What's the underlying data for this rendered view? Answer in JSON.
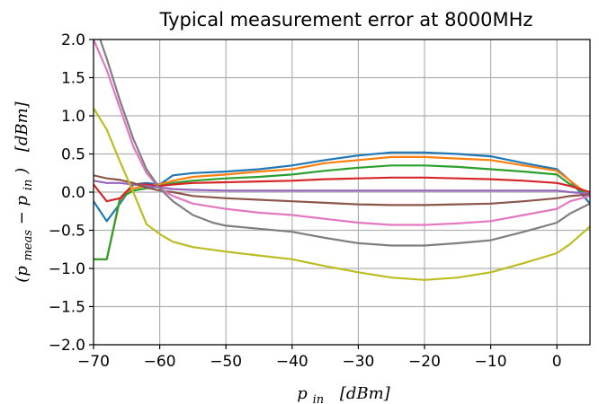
{
  "chart_data": {
    "type": "line",
    "title": "Typical measurement error at 8000MHz",
    "xlabel": {
      "var": "p",
      "sub": "in",
      "unit": "[dBm]"
    },
    "ylabel": {
      "var": "(p",
      "sub1": "meas",
      "mid": " − p",
      "sub2": "in",
      "close": ")",
      "unit": "[dBm]"
    },
    "xlim": [
      -70,
      5
    ],
    "ylim": [
      -2.0,
      2.0
    ],
    "xticks": [
      -70,
      -60,
      -50,
      -40,
      -30,
      -20,
      -10,
      0
    ],
    "xtick_labels": [
      "−70",
      "−60",
      "−50",
      "−40",
      "−30",
      "−20",
      "−10",
      "0"
    ],
    "yticks": [
      -2.0,
      -1.5,
      -1.0,
      -0.5,
      0.0,
      0.5,
      1.0,
      1.5,
      2.0
    ],
    "ytick_labels": [
      "−2.0",
      "−1.5",
      "−1.0",
      "−0.5",
      "0.0",
      "0.5",
      "1.0",
      "1.5",
      "2.0"
    ],
    "grid": true,
    "series": [
      {
        "color": "#1f77b4",
        "points": [
          [
            -70,
            -0.12
          ],
          [
            -68,
            -0.38
          ],
          [
            -66,
            -0.15
          ],
          [
            -64,
            0.1
          ],
          [
            -62,
            0.12
          ],
          [
            -60,
            0.1
          ],
          [
            -58,
            0.22
          ],
          [
            -55,
            0.25
          ],
          [
            -50,
            0.27
          ],
          [
            -45,
            0.3
          ],
          [
            -40,
            0.35
          ],
          [
            -35,
            0.42
          ],
          [
            -30,
            0.48
          ],
          [
            -25,
            0.52
          ],
          [
            -20,
            0.52
          ],
          [
            -15,
            0.5
          ],
          [
            -10,
            0.47
          ],
          [
            -5,
            0.38
          ],
          [
            0,
            0.3
          ],
          [
            2,
            0.15
          ],
          [
            5,
            -0.15
          ]
        ]
      },
      {
        "color": "#ff7f0e",
        "points": [
          [
            -70,
            -0.88
          ],
          [
            -68,
            -0.88
          ],
          [
            -66,
            -0.1
          ],
          [
            -64,
            0.05
          ],
          [
            -62,
            0.08
          ],
          [
            -60,
            0.1
          ],
          [
            -58,
            0.15
          ],
          [
            -55,
            0.2
          ],
          [
            -50,
            0.23
          ],
          [
            -45,
            0.27
          ],
          [
            -40,
            0.3
          ],
          [
            -35,
            0.38
          ],
          [
            -30,
            0.42
          ],
          [
            -25,
            0.46
          ],
          [
            -20,
            0.46
          ],
          [
            -15,
            0.44
          ],
          [
            -10,
            0.42
          ],
          [
            -5,
            0.35
          ],
          [
            0,
            0.28
          ],
          [
            2,
            0.15
          ],
          [
            5,
            -0.05
          ]
        ]
      },
      {
        "color": "#2ca02c",
        "points": [
          [
            -70,
            -0.88
          ],
          [
            -68,
            -0.88
          ],
          [
            -66,
            -0.08
          ],
          [
            -64,
            0.02
          ],
          [
            -62,
            0.05
          ],
          [
            -60,
            0.08
          ],
          [
            -58,
            0.12
          ],
          [
            -55,
            0.15
          ],
          [
            -50,
            0.18
          ],
          [
            -45,
            0.2
          ],
          [
            -40,
            0.23
          ],
          [
            -35,
            0.28
          ],
          [
            -30,
            0.32
          ],
          [
            -25,
            0.35
          ],
          [
            -20,
            0.35
          ],
          [
            -15,
            0.33
          ],
          [
            -10,
            0.3
          ],
          [
            -5,
            0.27
          ],
          [
            0,
            0.23
          ],
          [
            2,
            0.1
          ],
          [
            5,
            -0.05
          ]
        ]
      },
      {
        "color": "#d62728",
        "points": [
          [
            -70,
            0.1
          ],
          [
            -68,
            -0.12
          ],
          [
            -66,
            -0.08
          ],
          [
            -64,
            0.1
          ],
          [
            -62,
            0.1
          ],
          [
            -60,
            0.08
          ],
          [
            -58,
            0.1
          ],
          [
            -55,
            0.12
          ],
          [
            -50,
            0.13
          ],
          [
            -45,
            0.14
          ],
          [
            -40,
            0.15
          ],
          [
            -35,
            0.17
          ],
          [
            -30,
            0.18
          ],
          [
            -25,
            0.19
          ],
          [
            -20,
            0.19
          ],
          [
            -15,
            0.18
          ],
          [
            -10,
            0.17
          ],
          [
            -5,
            0.15
          ],
          [
            0,
            0.12
          ],
          [
            2,
            0.08
          ],
          [
            5,
            0.0
          ]
        ]
      },
      {
        "color": "#9467bd",
        "points": [
          [
            -70,
            0.15
          ],
          [
            -68,
            0.12
          ],
          [
            -66,
            0.12
          ],
          [
            -64,
            0.1
          ],
          [
            -62,
            0.08
          ],
          [
            -60,
            0.06
          ],
          [
            -58,
            0.04
          ],
          [
            -55,
            0.03
          ],
          [
            -50,
            0.02
          ],
          [
            -45,
            0.02
          ],
          [
            -40,
            0.02
          ],
          [
            -35,
            0.02
          ],
          [
            -30,
            0.02
          ],
          [
            -25,
            0.02
          ],
          [
            -20,
            0.02
          ],
          [
            -15,
            0.02
          ],
          [
            -10,
            0.02
          ],
          [
            -5,
            0.02
          ],
          [
            0,
            0.02
          ],
          [
            2,
            0.0
          ],
          [
            5,
            -0.02
          ]
        ]
      },
      {
        "color": "#8c564b",
        "points": [
          [
            -70,
            0.22
          ],
          [
            -68,
            0.18
          ],
          [
            -66,
            0.16
          ],
          [
            -64,
            0.12
          ],
          [
            -62,
            0.06
          ],
          [
            -60,
            0.02
          ],
          [
            -58,
            0.0
          ],
          [
            -55,
            -0.05
          ],
          [
            -50,
            -0.08
          ],
          [
            -45,
            -0.1
          ],
          [
            -40,
            -0.12
          ],
          [
            -35,
            -0.14
          ],
          [
            -30,
            -0.16
          ],
          [
            -25,
            -0.17
          ],
          [
            -20,
            -0.17
          ],
          [
            -15,
            -0.16
          ],
          [
            -10,
            -0.15
          ],
          [
            -5,
            -0.12
          ],
          [
            0,
            -0.08
          ],
          [
            2,
            -0.05
          ],
          [
            5,
            -0.03
          ]
        ]
      },
      {
        "color": "#e377c2",
        "points": [
          [
            -70,
            2.0
          ],
          [
            -68,
            1.6
          ],
          [
            -66,
            1.1
          ],
          [
            -64,
            0.6
          ],
          [
            -62,
            0.25
          ],
          [
            -60,
            0.05
          ],
          [
            -58,
            -0.05
          ],
          [
            -55,
            -0.15
          ],
          [
            -50,
            -0.22
          ],
          [
            -45,
            -0.27
          ],
          [
            -40,
            -0.3
          ],
          [
            -35,
            -0.35
          ],
          [
            -30,
            -0.4
          ],
          [
            -25,
            -0.43
          ],
          [
            -20,
            -0.43
          ],
          [
            -15,
            -0.41
          ],
          [
            -10,
            -0.38
          ],
          [
            -5,
            -0.3
          ],
          [
            0,
            -0.22
          ],
          [
            2,
            -0.12
          ],
          [
            5,
            -0.05
          ]
        ]
      },
      {
        "color": "#7f7f7f",
        "points": [
          [
            -69,
            2.0
          ],
          [
            -68,
            1.75
          ],
          [
            -66,
            1.2
          ],
          [
            -64,
            0.7
          ],
          [
            -62,
            0.3
          ],
          [
            -60,
            0.05
          ],
          [
            -58,
            -0.12
          ],
          [
            -55,
            -0.3
          ],
          [
            -52,
            -0.4
          ],
          [
            -50,
            -0.44
          ],
          [
            -45,
            -0.48
          ],
          [
            -40,
            -0.52
          ],
          [
            -35,
            -0.6
          ],
          [
            -30,
            -0.67
          ],
          [
            -25,
            -0.7
          ],
          [
            -20,
            -0.7
          ],
          [
            -15,
            -0.67
          ],
          [
            -10,
            -0.63
          ],
          [
            -5,
            -0.52
          ],
          [
            0,
            -0.4
          ],
          [
            2,
            -0.28
          ],
          [
            5,
            -0.15
          ]
        ]
      },
      {
        "color": "#bcbd22",
        "points": [
          [
            -70,
            1.1
          ],
          [
            -68,
            0.82
          ],
          [
            -66,
            0.4
          ],
          [
            -64,
            0.0
          ],
          [
            -62,
            -0.42
          ],
          [
            -60,
            -0.55
          ],
          [
            -58,
            -0.65
          ],
          [
            -55,
            -0.72
          ],
          [
            -50,
            -0.78
          ],
          [
            -45,
            -0.83
          ],
          [
            -40,
            -0.88
          ],
          [
            -35,
            -0.97
          ],
          [
            -30,
            -1.05
          ],
          [
            -25,
            -1.12
          ],
          [
            -20,
            -1.15
          ],
          [
            -15,
            -1.12
          ],
          [
            -10,
            -1.05
          ],
          [
            -5,
            -0.93
          ],
          [
            0,
            -0.8
          ],
          [
            2,
            -0.68
          ],
          [
            5,
            -0.45
          ]
        ]
      }
    ]
  }
}
